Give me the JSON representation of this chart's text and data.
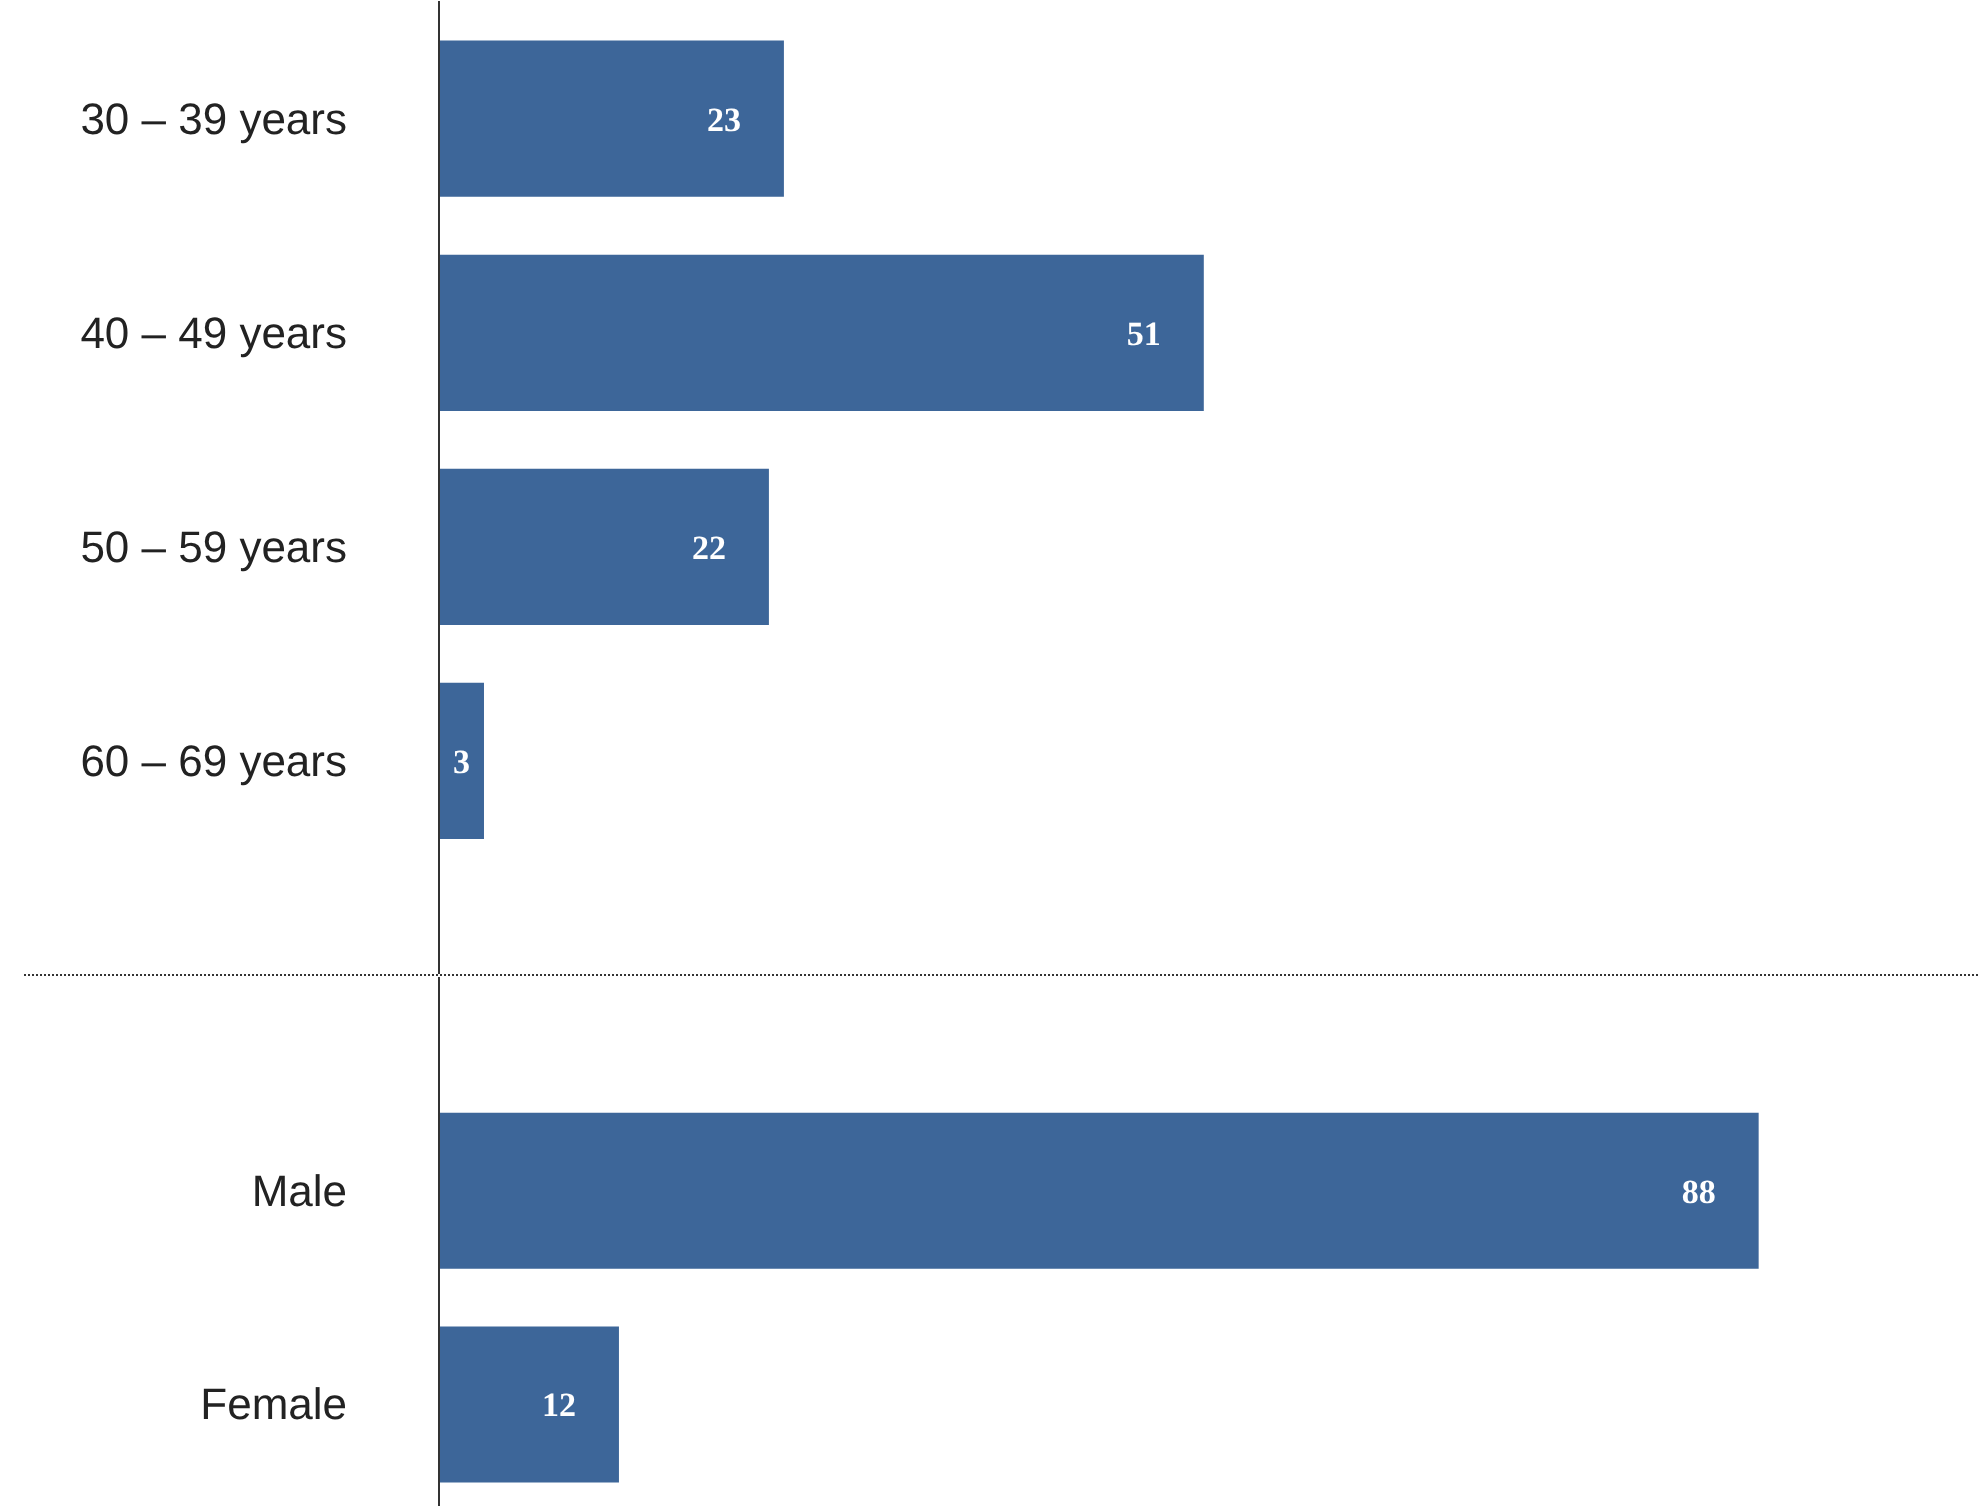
{
  "chart_data": [
    {
      "type": "bar",
      "orientation": "horizontal",
      "categories": [
        "30 – 39 years",
        "40 – 49 years",
        "50 – 59 years",
        "60 – 69 years"
      ],
      "values": [
        23,
        51,
        22,
        3
      ],
      "color": "#3d6699",
      "data_labels": true
    },
    {
      "type": "bar",
      "orientation": "horizontal",
      "categories": [
        "Male",
        "Female"
      ],
      "values": [
        88,
        12
      ],
      "color": "#3d6699",
      "data_labels": true
    }
  ]
}
